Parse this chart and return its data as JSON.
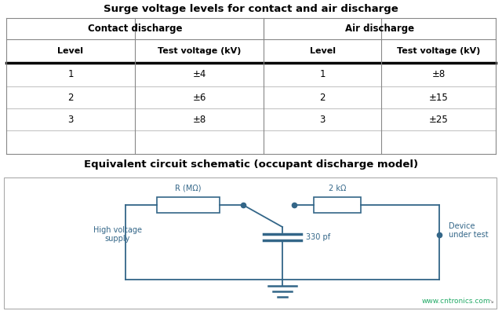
{
  "title_table": "Surge voltage levels for contact and air discharge",
  "title_circuit": "Equivalent circuit schematic (occupant discharge model)",
  "col_headers_1": [
    "Contact discharge",
    "Air discharge"
  ],
  "col_headers_2": [
    "Level",
    "Test voltage (kV)",
    "Level",
    "Test voltage (kV)"
  ],
  "table_data": [
    [
      "1",
      "±4",
      "1",
      "±8"
    ],
    [
      "2",
      "±6",
      "2",
      "±15"
    ],
    [
      "3",
      "±8",
      "3",
      "±25"
    ]
  ],
  "bg_color": "#ffffff",
  "border_color": "#888888",
  "text_color": "#000000",
  "wire_color": "#336688",
  "watermark": "www.cntronics.com",
  "watermark_color": "#22aa66"
}
